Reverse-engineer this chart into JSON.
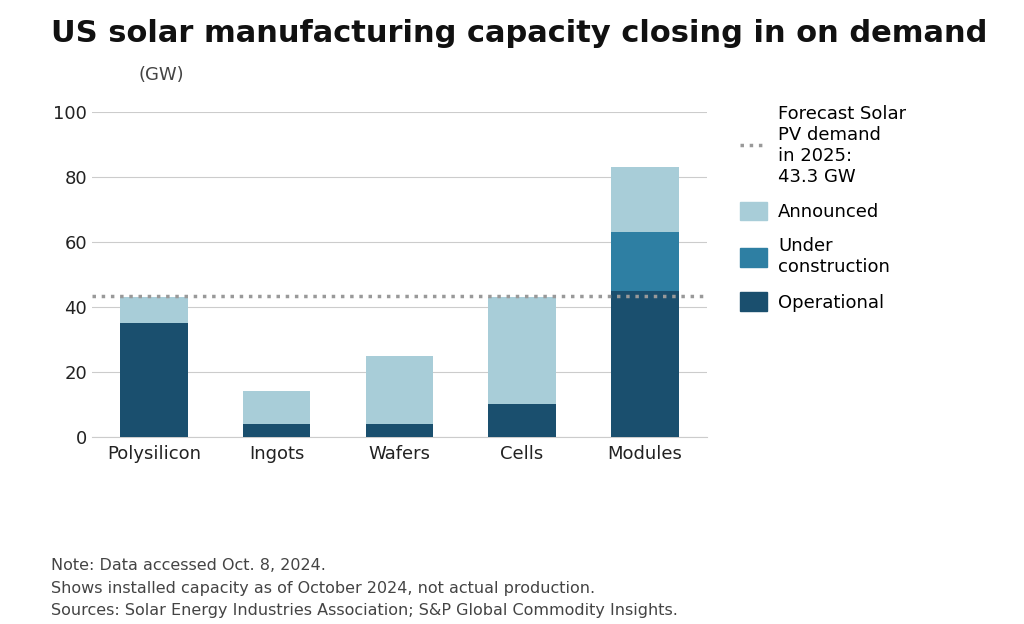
{
  "title": "US solar manufacturing capacity closing in on demand",
  "ylabel": "(GW)",
  "categories": [
    "Polysilicon",
    "Ingots",
    "Wafers",
    "Cells",
    "Modules"
  ],
  "operational": [
    35,
    4,
    4,
    10,
    45
  ],
  "under_construction": [
    0,
    0,
    0,
    0,
    18
  ],
  "announced": [
    8,
    10,
    21,
    33,
    20
  ],
  "forecast_line": 43.3,
  "forecast_label": "Forecast Solar\nPV demand\nin 2025:\n43.3 GW",
  "color_operational": "#1a4f6e",
  "color_under_construction": "#2e7fa3",
  "color_announced": "#a8cdd8",
  "color_forecast": "#999999",
  "ylim": [
    0,
    100
  ],
  "yticks": [
    0,
    20,
    40,
    60,
    80,
    100
  ],
  "note_lines": [
    "Note: Data accessed Oct. 8, 2024.",
    "Shows installed capacity as of October 2024, not actual production.",
    "Sources: Solar Energy Industries Association; S&P Global Commodity Insights."
  ],
  "background_color": "#ffffff",
  "bar_width": 0.55,
  "title_fontsize": 22,
  "axis_fontsize": 13,
  "note_fontsize": 11.5,
  "legend_fontsize": 13
}
